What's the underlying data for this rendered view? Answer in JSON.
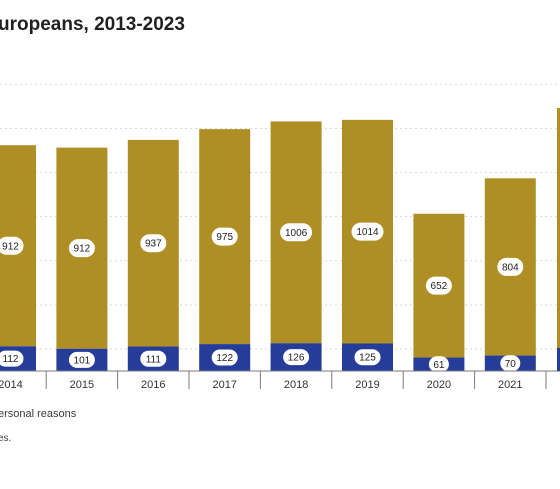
{
  "title": "uropeans, 2013-2023",
  "legend": {
    "personal_label": "ersonal reasons"
  },
  "note": "es.",
  "colors": {
    "top": "#af8f25",
    "bottom": "#263c99",
    "grid": "#d9d9d9",
    "axis": "#7a7a7a"
  },
  "chart_data": {
    "type": "bar",
    "stacked": true,
    "categories": [
      "2014",
      "2015",
      "2016",
      "2017",
      "2018",
      "2019",
      "2020",
      "2021",
      ""
    ],
    "series": [
      {
        "values": [
          112,
          101,
          111,
          122,
          126,
          125,
          61,
          70,
          null
        ]
      },
      {
        "values": [
          912,
          912,
          937,
          975,
          1006,
          1014,
          652,
          804,
          null
        ]
      }
    ],
    "ylim": [
      0,
      1250
    ],
    "grid": true
  }
}
